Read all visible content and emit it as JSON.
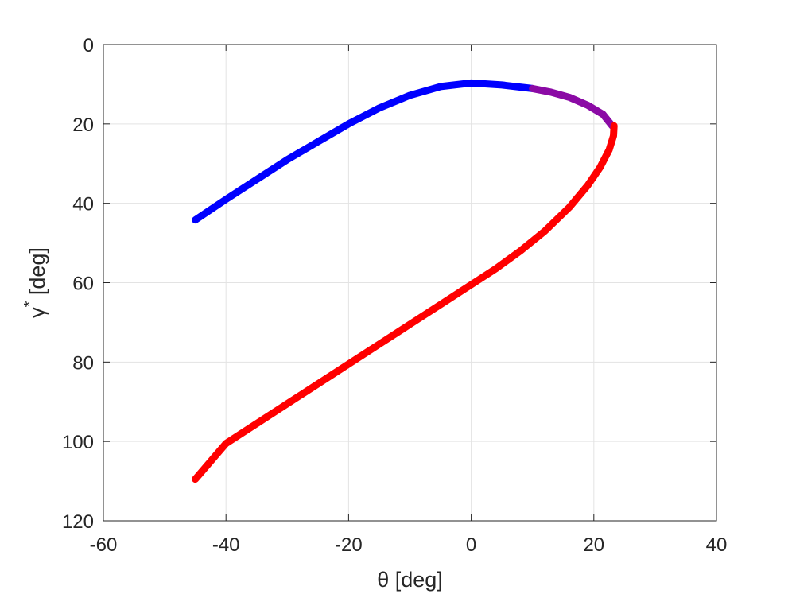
{
  "chart_data": {
    "type": "line",
    "title": "",
    "xlabel": "θ [deg]",
    "ylabel": "γ",
    "ylabel_superscript": "*",
    "ylabel_unit": " [deg]",
    "xlim": [
      -60,
      40
    ],
    "ylim": [
      0,
      120
    ],
    "y_reversed": true,
    "grid": true,
    "xticks": [
      -60,
      -40,
      -20,
      0,
      20,
      40
    ],
    "xtick_labels": [
      "-60",
      "-40",
      "-20",
      "0",
      "20",
      "40"
    ],
    "yticks": [
      0,
      20,
      40,
      60,
      80,
      100,
      120
    ],
    "ytick_labels": [
      "0",
      "20",
      "40",
      "60",
      "80",
      "100",
      "120"
    ],
    "series": [
      {
        "color": "#0000ff",
        "x": [
          -45,
          -40,
          -35,
          -30,
          -25,
          -20,
          -15,
          -10,
          -5,
          0,
          5,
          10
        ],
        "y": [
          44.2,
          39.0,
          34.0,
          29.0,
          24.5,
          20.0,
          16.0,
          12.8,
          10.6,
          9.7,
          10.2,
          11.1
        ]
      },
      {
        "color": "#8b0aa5",
        "x": [
          10,
          13,
          16,
          19,
          21.5,
          23
        ],
        "y": [
          11.1,
          12.0,
          13.3,
          15.3,
          17.6,
          20.5
        ]
      },
      {
        "color": "#ff0000",
        "x": [
          23.3,
          23.2,
          22.5,
          21,
          19,
          16,
          12,
          8,
          4,
          0,
          -5,
          -10,
          -15,
          -20,
          -25,
          -30,
          -35,
          -40,
          -45
        ],
        "y": [
          20.5,
          23.0,
          26.5,
          31.0,
          35.5,
          41.0,
          47.0,
          52.0,
          56.5,
          60.5,
          65.5,
          70.5,
          75.5,
          80.5,
          85.5,
          90.5,
          95.5,
          100.5,
          109.5
        ]
      }
    ]
  }
}
